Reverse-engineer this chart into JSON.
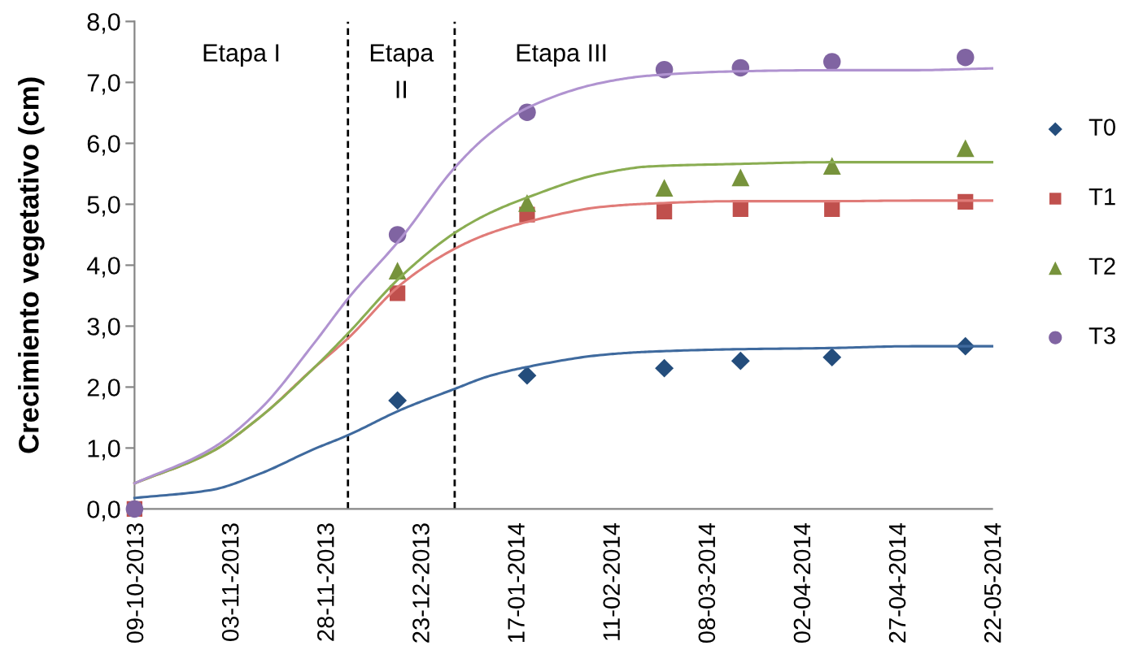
{
  "chart_data": {
    "type": "scatter",
    "ylabel": "Crecimiento vegetativo (cm)",
    "xlim": [
      "2013-10-09",
      "2014-05-22"
    ],
    "xticks": [
      {
        "value": "2013-10-09",
        "label": "09-10-2013"
      },
      {
        "value": "2013-11-03",
        "label": "03-11-2013"
      },
      {
        "value": "2013-11-28",
        "label": "28-11-2013"
      },
      {
        "value": "2013-12-23",
        "label": "23-12-2013"
      },
      {
        "value": "2014-01-17",
        "label": "17-01-2014"
      },
      {
        "value": "2014-02-11",
        "label": "11-02-2014"
      },
      {
        "value": "2014-03-08",
        "label": "08-03-2014"
      },
      {
        "value": "2014-04-02",
        "label": "02-04-2014"
      },
      {
        "value": "2014-04-27",
        "label": "27-04-2014"
      },
      {
        "value": "2014-05-22",
        "label": "22-05-2014"
      }
    ],
    "ylim": [
      0,
      8
    ],
    "yticks": [
      {
        "value": 0,
        "label": "0,0"
      },
      {
        "value": 1,
        "label": "1,0"
      },
      {
        "value": 2,
        "label": "2,0"
      },
      {
        "value": 3,
        "label": "3,0"
      },
      {
        "value": 4,
        "label": "4,0"
      },
      {
        "value": 5,
        "label": "5,0"
      },
      {
        "value": 6,
        "label": "6,0"
      },
      {
        "value": 7,
        "label": "7,0"
      },
      {
        "value": 8,
        "label": "8,0"
      }
    ],
    "legend": "right",
    "series": [
      {
        "name": "T0",
        "marker": "diamond",
        "color": "#244d7c",
        "x": [
          "2013-12-17",
          "2014-01-20",
          "2014-02-25",
          "2014-03-17",
          "2014-04-10",
          "2014-05-15"
        ],
        "values": [
          1.78,
          2.19,
          2.31,
          2.43,
          2.49,
          2.67
        ]
      },
      {
        "name": "T1",
        "marker": "square",
        "color": "#c0504d",
        "x": [
          "2013-10-09",
          "2013-12-17",
          "2014-01-20",
          "2014-02-25",
          "2014-03-17",
          "2014-04-10",
          "2014-05-15"
        ],
        "values": [
          0,
          3.54,
          4.83,
          4.88,
          4.92,
          4.92,
          5.04
        ]
      },
      {
        "name": "T2",
        "marker": "triangle",
        "color": "#77933c",
        "x": [
          "2013-12-17",
          "2014-01-20",
          "2014-02-25",
          "2014-03-17",
          "2014-04-10",
          "2014-05-15"
        ],
        "values": [
          3.91,
          5.02,
          5.27,
          5.44,
          5.63,
          5.92
        ]
      },
      {
        "name": "T3",
        "marker": "circle",
        "color": "#8064a2",
        "x": [
          "2013-10-09",
          "2013-12-17",
          "2014-01-20",
          "2014-02-25",
          "2014-03-17",
          "2014-04-10",
          "2014-05-15"
        ],
        "values": [
          0,
          4.5,
          6.51,
          7.21,
          7.24,
          7.34,
          7.41
        ]
      },
      {
        "type": "line",
        "color": "#3f6a9e",
        "x": [
          "2013-10-09",
          "2013-10-29",
          "2013-11-11",
          "2013-11-25",
          "2013-12-04",
          "2013-12-18",
          "2014-01-01",
          "2014-01-10",
          "2014-01-20",
          "2014-02-09",
          "2014-02-21",
          "2014-03-15",
          "2014-04-09",
          "2014-05-01",
          "2014-05-22"
        ],
        "values": [
          0.18,
          0.31,
          0.58,
          0.98,
          1.21,
          1.63,
          1.97,
          2.18,
          2.33,
          2.53,
          2.58,
          2.62,
          2.64,
          2.67,
          2.67
        ]
      },
      {
        "type": "line",
        "color": "#e07b78",
        "x": [
          "2013-10-09",
          "2013-10-29",
          "2013-11-11",
          "2013-11-25",
          "2013-12-04",
          "2013-12-18",
          "2014-01-01",
          "2014-01-10",
          "2014-01-20",
          "2014-02-09",
          "2014-02-21",
          "2014-03-15",
          "2014-04-09",
          "2014-05-01",
          "2014-05-22"
        ],
        "values": [
          0.42,
          0.93,
          1.51,
          2.31,
          2.8,
          3.69,
          4.27,
          4.52,
          4.71,
          4.96,
          5.01,
          5.05,
          5.05,
          5.06,
          5.06
        ]
      },
      {
        "type": "line",
        "color": "#8aad52",
        "x": [
          "2013-10-09",
          "2013-10-29",
          "2013-11-11",
          "2013-11-25",
          "2013-12-04",
          "2013-12-18",
          "2014-01-01",
          "2014-01-10",
          "2014-01-20",
          "2014-02-09",
          "2014-02-21",
          "2014-03-15",
          "2014-04-09",
          "2014-05-01",
          "2014-05-22"
        ],
        "values": [
          0.42,
          0.93,
          1.51,
          2.31,
          2.88,
          3.82,
          4.53,
          4.85,
          5.11,
          5.51,
          5.62,
          5.66,
          5.69,
          5.69,
          5.69
        ]
      },
      {
        "type": "line",
        "color": "#b093d0",
        "x": [
          "2013-10-09",
          "2013-10-29",
          "2013-11-11",
          "2013-11-25",
          "2013-12-04",
          "2013-12-18",
          "2014-01-01",
          "2014-01-10",
          "2014-01-20",
          "2014-02-09",
          "2014-02-21",
          "2014-03-15",
          "2014-04-09",
          "2014-05-01",
          "2014-05-22"
        ],
        "values": [
          0.42,
          0.98,
          1.64,
          2.71,
          3.45,
          4.45,
          5.6,
          6.15,
          6.58,
          7.0,
          7.11,
          7.18,
          7.2,
          7.2,
          7.23
        ]
      }
    ],
    "ref_lines": [
      {
        "axis": "x",
        "value": "2013-12-04",
        "color": "#000000",
        "line_style": "dashed"
      },
      {
        "axis": "x",
        "value": "2014-01-01",
        "color": "#000000",
        "line_style": "dashed"
      }
    ],
    "annotations": [
      "Etapa I",
      "Etapa\nII",
      "Etapa III"
    ]
  }
}
